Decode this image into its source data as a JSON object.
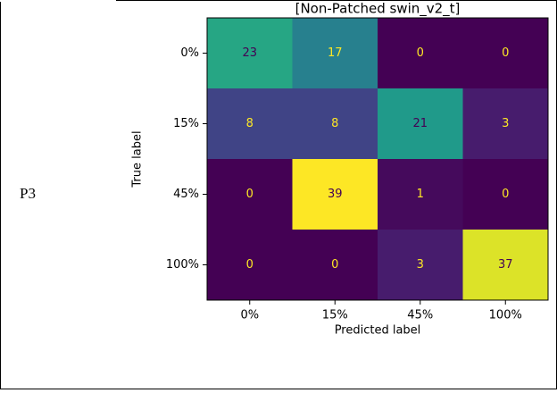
{
  "row_label": "P3",
  "chart_data": {
    "type": "heatmap",
    "title": "[Non-Patched swin_v2_t]",
    "x_label": "Predicted label",
    "y_label": "True label",
    "x_categories": [
      "0%",
      "15%",
      "45%",
      "100%"
    ],
    "y_categories": [
      "0%",
      "15%",
      "45%",
      "100%"
    ],
    "values": [
      [
        23,
        17,
        0,
        0
      ],
      [
        8,
        8,
        21,
        3
      ],
      [
        0,
        39,
        1,
        0
      ],
      [
        0,
        0,
        3,
        37
      ]
    ],
    "colormap": "viridis"
  }
}
